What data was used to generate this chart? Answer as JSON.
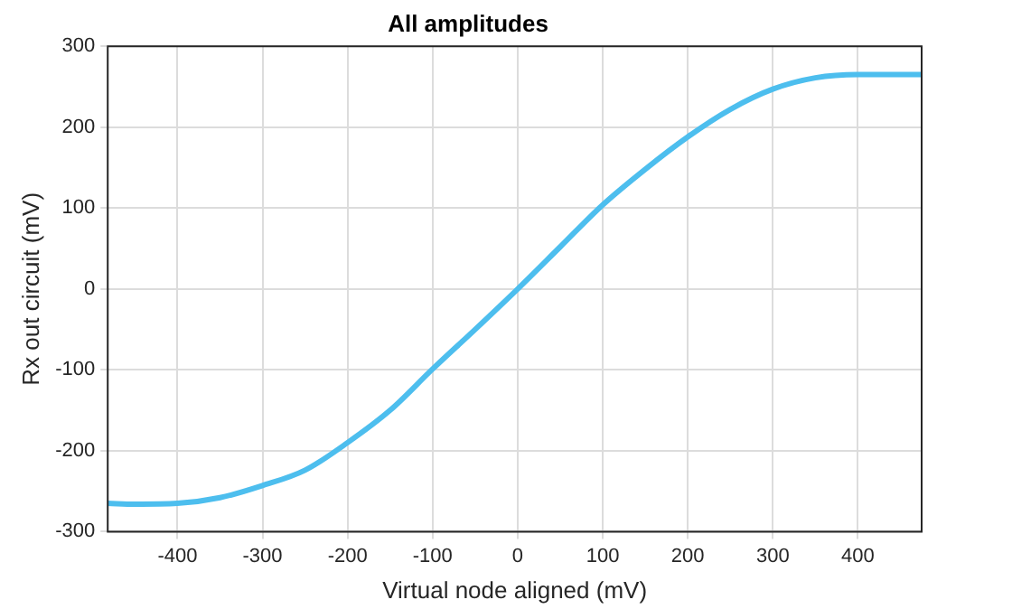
{
  "chart_data": {
    "type": "line",
    "title": "All amplitudes",
    "xlabel": "Virtual node aligned (mV)",
    "ylabel": "Rx out circuit (mV)",
    "series": [
      {
        "color": "#4dbeee",
        "x": [
          -482,
          -450,
          -400,
          -350,
          -300,
          -250,
          -200,
          -150,
          -100,
          -50,
          0,
          50,
          100,
          150,
          200,
          250,
          300,
          350,
          400,
          450,
          475
        ],
        "values": [
          -265,
          -266,
          -265,
          -258,
          -243,
          -224,
          -190,
          -150,
          -99,
          -50,
          0,
          52,
          104,
          148,
          188,
          222,
          247,
          261,
          265,
          265,
          265
        ]
      }
    ],
    "xlim": [
      -482,
      475
    ],
    "ylim": [
      -300,
      300
    ],
    "xticks": [
      -400,
      -300,
      -200,
      -100,
      0,
      100,
      200,
      300,
      400
    ],
    "yticks": [
      -300,
      -200,
      -100,
      0,
      100,
      200,
      300
    ],
    "grid": true,
    "legend": false,
    "marker": "none",
    "line_style": "solid"
  }
}
